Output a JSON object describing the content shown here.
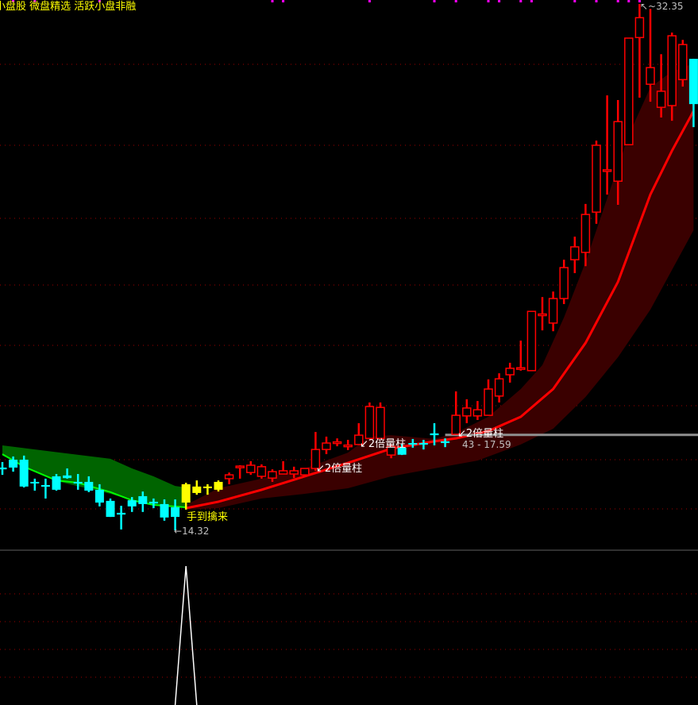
{
  "header": {
    "title": "小盘股 微盘精选 活跃小盘非融"
  },
  "annotations": {
    "volume_label": "2倍量柱",
    "volume_label_indices": [
      29,
      33,
      42
    ],
    "signal_label": "手到擒来",
    "low_label": "14.32",
    "high_label": "32.35",
    "range_label": "43 - 17.59"
  },
  "chart_data": {
    "type": "candlestick",
    "title": "",
    "price_range": [
      14.32,
      32.35
    ],
    "colors": {
      "up": "#ff0000",
      "down": "#00ffff",
      "signal": "#ffff00",
      "ma_up": "#ff0000",
      "ma_down": "#00ff00",
      "band_up": "#3a0000",
      "band_down": "#006400",
      "marker": "#ff00ff",
      "indicator": "#ffffff",
      "grid": "#a00000"
    },
    "candle_fields": [
      "open",
      "high",
      "low",
      "close",
      "style"
    ],
    "candles": [
      [
        16.47,
        16.66,
        16.22,
        16.41,
        "down"
      ],
      [
        16.74,
        16.85,
        16.33,
        16.47,
        "down"
      ],
      [
        16.74,
        16.88,
        15.79,
        15.82,
        "down"
      ],
      [
        15.98,
        16.09,
        15.68,
        15.95,
        "down"
      ],
      [
        15.87,
        16.09,
        15.41,
        15.82,
        "down"
      ],
      [
        16.17,
        16.25,
        15.68,
        15.71,
        "down"
      ],
      [
        16.2,
        16.44,
        16.09,
        16.11,
        "down"
      ],
      [
        15.98,
        16.25,
        15.71,
        15.95,
        "down"
      ],
      [
        15.98,
        16.17,
        15.63,
        15.68,
        "down"
      ],
      [
        15.71,
        15.9,
        15.14,
        15.27,
        "down"
      ],
      [
        15.33,
        15.41,
        14.78,
        14.78,
        "down"
      ],
      [
        14.92,
        15.16,
        14.35,
        14.86,
        "down"
      ],
      [
        15.35,
        15.46,
        14.95,
        15.14,
        "down"
      ],
      [
        15.49,
        15.65,
        14.95,
        15.22,
        "down"
      ],
      [
        15.3,
        15.41,
        15.08,
        15.24,
        "down"
      ],
      [
        15.22,
        15.38,
        14.65,
        14.76,
        "down"
      ],
      [
        15.11,
        15.38,
        14.32,
        14.78,
        "down"
      ],
      [
        15.27,
        15.95,
        15.03,
        15.9,
        "signal"
      ],
      [
        15.6,
        16.03,
        15.54,
        15.82,
        "signal"
      ],
      [
        15.79,
        15.9,
        15.54,
        15.82,
        "signal"
      ],
      [
        15.71,
        16.03,
        15.65,
        15.98,
        "signal"
      ],
      [
        16.09,
        16.3,
        15.9,
        16.22,
        "up"
      ],
      [
        16.5,
        16.55,
        16.09,
        16.52,
        "up"
      ],
      [
        16.3,
        16.69,
        16.22,
        16.55,
        "up"
      ],
      [
        16.17,
        16.58,
        16.09,
        16.5,
        "up"
      ],
      [
        16.11,
        16.41,
        15.98,
        16.33,
        "up"
      ],
      [
        16.25,
        16.69,
        16.25,
        16.36,
        "up"
      ],
      [
        16.25,
        16.5,
        16.11,
        16.36,
        "up"
      ],
      [
        16.22,
        16.44,
        16.17,
        16.44,
        "up"
      ],
      [
        16.44,
        17.69,
        16.36,
        17.09,
        "up"
      ],
      [
        17.09,
        17.53,
        16.93,
        17.31,
        "up"
      ],
      [
        17.34,
        17.47,
        17.2,
        17.35,
        "up"
      ],
      [
        17.23,
        17.42,
        17.07,
        17.24,
        "up"
      ],
      [
        17.26,
        17.99,
        17.26,
        17.58,
        "up"
      ],
      [
        17.47,
        18.7,
        17.47,
        18.56,
        "up"
      ],
      [
        17.47,
        18.7,
        17.47,
        18.53,
        "up"
      ],
      [
        16.9,
        17.26,
        16.79,
        17.2,
        "up"
      ],
      [
        17.15,
        17.28,
        16.9,
        16.91,
        "down"
      ],
      [
        17.31,
        17.45,
        17.15,
        17.26,
        "down"
      ],
      [
        17.31,
        17.42,
        17.09,
        17.26,
        "down"
      ],
      [
        17.64,
        17.99,
        17.23,
        17.58,
        "down"
      ],
      [
        17.37,
        17.47,
        17.17,
        17.31,
        "down"
      ],
      [
        17.61,
        19.08,
        17.61,
        18.26,
        "up"
      ],
      [
        18.24,
        18.81,
        17.99,
        18.51,
        "up"
      ],
      [
        18.24,
        18.75,
        18.1,
        18.45,
        "up"
      ],
      [
        18.26,
        19.49,
        18.26,
        19.16,
        "up"
      ],
      [
        18.92,
        19.7,
        18.7,
        19.51,
        "up"
      ],
      [
        19.65,
        20.06,
        19.38,
        19.87,
        "up"
      ],
      [
        19.84,
        20.82,
        19.79,
        19.89,
        "up"
      ],
      [
        19.79,
        21.82,
        19.79,
        21.82,
        "up"
      ],
      [
        21.72,
        22.31,
        21.17,
        21.73,
        "up"
      ],
      [
        21.42,
        22.5,
        21.14,
        22.26,
        "up"
      ],
      [
        22.26,
        23.59,
        22.07,
        23.32,
        "up"
      ],
      [
        23.59,
        24.38,
        23.13,
        24.03,
        "up"
      ],
      [
        23.84,
        25.5,
        23.37,
        25.14,
        "up"
      ],
      [
        25.22,
        27.67,
        24.82,
        27.51,
        "up"
      ],
      [
        26.66,
        29.22,
        25.82,
        26.67,
        "up"
      ],
      [
        26.28,
        29.06,
        25.47,
        28.32,
        "up"
      ],
      [
        27.53,
        31.18,
        27.53,
        31.18,
        "up"
      ],
      [
        31.2,
        32.35,
        29.14,
        31.88,
        "up"
      ],
      [
        29.6,
        32.18,
        29.0,
        30.17,
        "up"
      ],
      [
        28.81,
        30.63,
        28.46,
        29.36,
        "up"
      ],
      [
        28.87,
        31.37,
        28.35,
        31.26,
        "up"
      ],
      [
        29.76,
        31.12,
        29.52,
        30.96,
        "up"
      ],
      [
        30.47,
        30.47,
        28.13,
        28.92,
        "down"
      ]
    ],
    "ma_down": [
      [
        0,
        16.93
      ],
      [
        2,
        16.5
      ],
      [
        5,
        16.03
      ],
      [
        7,
        15.95
      ],
      [
        10,
        15.63
      ],
      [
        12,
        15.35
      ],
      [
        14,
        15.19
      ],
      [
        17,
        15.11
      ]
    ],
    "ma_up": [
      [
        17,
        15.08
      ],
      [
        20,
        15.3
      ],
      [
        24,
        15.71
      ],
      [
        28,
        16.17
      ],
      [
        32,
        16.63
      ],
      [
        36,
        17.12
      ],
      [
        40,
        17.37
      ],
      [
        42,
        17.47
      ],
      [
        45,
        17.72
      ],
      [
        48,
        18.21
      ],
      [
        51,
        19.16
      ],
      [
        54,
        20.74
      ],
      [
        57,
        22.83
      ],
      [
        60,
        25.82
      ],
      [
        62,
        27.32
      ],
      [
        64,
        28.68
      ]
    ],
    "band_down_upper": [
      [
        0,
        17.23
      ],
      [
        5,
        17.0
      ],
      [
        10,
        16.77
      ],
      [
        12,
        16.44
      ],
      [
        14,
        16.17
      ],
      [
        16,
        15.84
      ],
      [
        17,
        15.79
      ]
    ],
    "band_down_lower": [
      [
        0,
        16.88
      ],
      [
        5,
        16.01
      ],
      [
        10,
        15.57
      ],
      [
        12,
        15.35
      ],
      [
        14,
        15.19
      ],
      [
        17,
        15.08
      ]
    ],
    "band_up_upper": [
      [
        17,
        15.19
      ],
      [
        20,
        15.76
      ],
      [
        24,
        16.09
      ],
      [
        28,
        16.44
      ],
      [
        32,
        16.98
      ],
      [
        34,
        17.53
      ],
      [
        36,
        17.58
      ],
      [
        40,
        17.45
      ],
      [
        42,
        17.66
      ],
      [
        45,
        18.21
      ],
      [
        48,
        19.16
      ],
      [
        50,
        19.98
      ],
      [
        52,
        21.61
      ],
      [
        54,
        23.51
      ],
      [
        56,
        25.69
      ],
      [
        58,
        27.86
      ],
      [
        60,
        29.49
      ],
      [
        62,
        30.04
      ],
      [
        64,
        30.31
      ]
    ],
    "band_up_lower": [
      [
        17,
        15.03
      ],
      [
        20,
        15.08
      ],
      [
        24,
        15.41
      ],
      [
        28,
        15.57
      ],
      [
        32,
        15.76
      ],
      [
        36,
        16.17
      ],
      [
        40,
        16.44
      ],
      [
        44,
        16.71
      ],
      [
        48,
        17.26
      ],
      [
        51,
        17.8
      ],
      [
        54,
        18.89
      ],
      [
        57,
        20.25
      ],
      [
        60,
        21.88
      ],
      [
        62,
        23.24
      ],
      [
        64,
        24.6
      ]
    ],
    "range_line_price": 17.59,
    "range_line_start_index": 41,
    "marker_indices": [
      1,
      3,
      9,
      25,
      26,
      34,
      40,
      42,
      45,
      46,
      48,
      49,
      53,
      55,
      57,
      58,
      59
    ],
    "indicator": [
      [
        16,
        0
      ],
      [
        17,
        1
      ],
      [
        18,
        0
      ]
    ]
  }
}
